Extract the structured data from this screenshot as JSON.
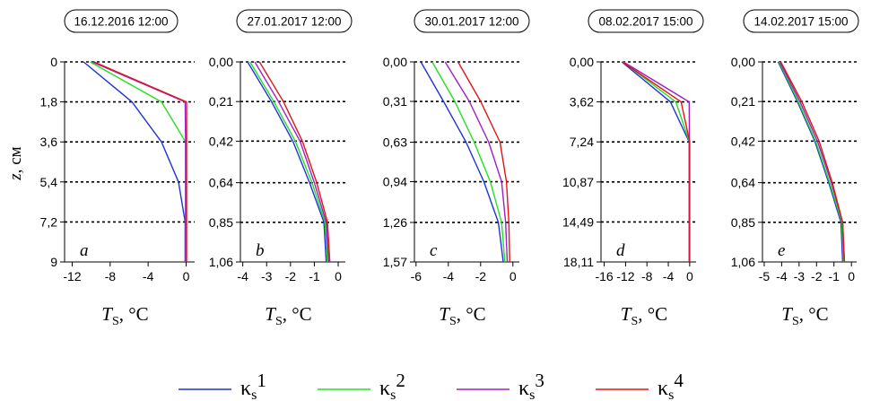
{
  "chart_data": [
    {
      "type": "line",
      "title": "16.12.2016 12:00",
      "panel_letter": "a",
      "ylabel_var": "z",
      "ylabel_unit": ", см",
      "xlabel_var": "T",
      "xlabel_sub": "S",
      "xlabel_unit": ", °C",
      "y_ticks": [
        "0",
        "1,8",
        "3,6",
        "5,4",
        "7,2",
        "9"
      ],
      "y_values": [
        0,
        1.8,
        3.6,
        5.4,
        7.2,
        9
      ],
      "x_ticks": [
        "-12",
        "-8",
        "-4",
        "0"
      ],
      "x_tick_values": [
        -12,
        -8,
        -4,
        0
      ],
      "xlim": [
        -12.8,
        0.9
      ],
      "ylim": [
        0,
        9
      ],
      "dashed_gridlines": [
        0,
        1.8,
        3.6,
        5.4,
        7.2
      ],
      "series": [
        {
          "name": "κs1",
          "y": [
            0,
            1.8,
            3.6,
            5.4,
            7.2,
            9
          ],
          "x": [
            -10.8,
            -5.7,
            -2.6,
            -0.8,
            -0.1,
            -0.1
          ]
        },
        {
          "name": "κs2",
          "y": [
            0,
            1.8,
            3.6,
            5.4,
            7.2,
            9
          ],
          "x": [
            -10.1,
            -2.6,
            -0.05,
            -0.05,
            -0.05,
            -0.05
          ]
        },
        {
          "name": "κs3",
          "y": [
            0,
            1.8,
            3.6,
            5.4,
            7.2,
            9
          ],
          "x": [
            -9.9,
            -0.1,
            -0.05,
            -0.05,
            -0.05,
            -0.05
          ]
        },
        {
          "name": "κs4",
          "y": [
            0,
            1.8,
            3.6,
            5.4,
            7.2,
            9
          ],
          "x": [
            -9.7,
            0.05,
            0.05,
            0.05,
            0.05,
            0.05
          ]
        }
      ]
    },
    {
      "type": "line",
      "title": "27.01.2017 12:00",
      "panel_letter": "b",
      "xlabel_var": "T",
      "xlabel_sub": "S",
      "xlabel_unit": ", °C",
      "y_ticks": [
        "0,00",
        "0,21",
        "0,42",
        "0,64",
        "0,85",
        "1,06"
      ],
      "y_values": [
        0,
        0.21,
        0.42,
        0.64,
        0.85,
        1.06
      ],
      "x_ticks": [
        "-4",
        "-3",
        "-2",
        "-1",
        "0"
      ],
      "x_tick_values": [
        -4,
        -3,
        -2,
        -1,
        0
      ],
      "xlim": [
        -4.1,
        0.3
      ],
      "ylim": [
        0,
        1.06
      ],
      "dashed_gridlines": [
        0,
        0.21,
        0.42,
        0.64,
        0.85
      ],
      "series": [
        {
          "name": "κs1",
          "y": [
            0,
            0.21,
            0.42,
            0.64,
            0.85,
            1.06
          ],
          "x": [
            -3.8,
            -2.8,
            -1.9,
            -1.2,
            -0.6,
            -0.5
          ]
        },
        {
          "name": "κs2",
          "y": [
            0,
            0.21,
            0.42,
            0.64,
            0.85,
            1.06
          ],
          "x": [
            -3.7,
            -2.7,
            -1.8,
            -1.1,
            -0.55,
            -0.45
          ]
        },
        {
          "name": "κs3",
          "y": [
            0,
            0.21,
            0.42,
            0.64,
            0.85,
            1.06
          ],
          "x": [
            -3.5,
            -2.5,
            -1.6,
            -1.0,
            -0.5,
            -0.4
          ]
        },
        {
          "name": "κs4",
          "y": [
            0,
            0.21,
            0.42,
            0.64,
            0.85,
            1.06
          ],
          "x": [
            -3.3,
            -2.3,
            -1.5,
            -0.9,
            -0.45,
            -0.35
          ]
        }
      ]
    },
    {
      "type": "line",
      "title": "30.01.2017 12:00",
      "panel_letter": "c",
      "xlabel_var": "T",
      "xlabel_sub": "S",
      "xlabel_unit": ", °C",
      "y_ticks": [
        "0,00",
        "0,31",
        "0,63",
        "0,94",
        "1,26",
        "1,57"
      ],
      "y_values": [
        0,
        0.31,
        0.63,
        0.94,
        1.26,
        1.57
      ],
      "x_ticks": [
        "-6",
        "-4",
        "-2",
        "0"
      ],
      "x_tick_values": [
        -6,
        -4,
        -2,
        0
      ],
      "xlim": [
        -6.1,
        0.4
      ],
      "ylim": [
        0,
        1.57
      ],
      "dashed_gridlines": [
        0,
        0.31,
        0.63,
        0.94,
        1.26
      ],
      "series": [
        {
          "name": "κs1",
          "y": [
            0,
            0.31,
            0.63,
            0.94,
            1.26,
            1.57
          ],
          "x": [
            -5.7,
            -4.3,
            -2.9,
            -1.8,
            -0.9,
            -0.6
          ]
        },
        {
          "name": "κs2",
          "y": [
            0,
            0.31,
            0.63,
            0.94,
            1.26,
            1.57
          ],
          "x": [
            -5.0,
            -3.6,
            -2.4,
            -1.4,
            -0.7,
            -0.5
          ]
        },
        {
          "name": "κs3",
          "y": [
            0,
            0.31,
            0.63,
            0.94,
            1.26,
            1.57
          ],
          "x": [
            -4.2,
            -2.7,
            -1.5,
            -0.7,
            -0.45,
            -0.35
          ]
        },
        {
          "name": "κs4",
          "y": [
            0,
            0.31,
            0.63,
            0.94,
            1.26,
            1.57
          ],
          "x": [
            -3.4,
            -2.0,
            -0.8,
            -0.4,
            -0.25,
            -0.2
          ]
        }
      ]
    },
    {
      "type": "line",
      "title": "08.02.2017 15:00",
      "panel_letter": "d",
      "xlabel_var": "T",
      "xlabel_sub": "S",
      "xlabel_unit": ", °C",
      "y_ticks": [
        "0,00",
        "3,62",
        "7,24",
        "10,87",
        "14,49",
        "18,11"
      ],
      "y_values": [
        0,
        3.62,
        7.24,
        10.87,
        14.49,
        18.11
      ],
      "x_ticks": [
        "-16",
        "-12",
        "-8",
        "-4",
        "0"
      ],
      "x_tick_values": [
        -16,
        -12,
        -8,
        -4,
        0
      ],
      "xlim": [
        -16.6,
        1.2
      ],
      "ylim": [
        0,
        18.11
      ],
      "dashed_gridlines": [
        0,
        3.62,
        7.24,
        10.87,
        14.49
      ],
      "series": [
        {
          "name": "κs1",
          "y": [
            0,
            3.62,
            7.24,
            10.87,
            14.49,
            18.11
          ],
          "x": [
            -12.7,
            -3.6,
            -0.1,
            -0.1,
            -0.1,
            -0.1
          ]
        },
        {
          "name": "κs2",
          "y": [
            0,
            3.62,
            7.24,
            10.87,
            14.49,
            18.11
          ],
          "x": [
            -12.5,
            -2.6,
            -0.05,
            -0.05,
            -0.05,
            -0.05
          ]
        },
        {
          "name": "κs3",
          "y": [
            0,
            3.62,
            7.24,
            10.87,
            14.49,
            18.11
          ],
          "x": [
            -12.4,
            -0.1,
            -0.05,
            -0.05,
            -0.05,
            -0.05
          ]
        },
        {
          "name": "κs4",
          "y": [
            0,
            3.62,
            7.24,
            10.87,
            14.49,
            18.11
          ],
          "x": [
            -12.6,
            -1.6,
            0.0,
            0.0,
            0.0,
            0.0
          ]
        }
      ]
    },
    {
      "type": "line",
      "title": "14.02.2017 15:00",
      "panel_letter": "e",
      "xlabel_var": "T",
      "xlabel_sub": "S",
      "xlabel_unit": ", °C",
      "y_ticks": [
        "0,00",
        "0,21",
        "0,42",
        "0,64",
        "0,85",
        "1,06"
      ],
      "y_values": [
        0,
        0.21,
        0.42,
        0.64,
        0.85,
        1.06
      ],
      "x_ticks": [
        "-5",
        "-4",
        "-3",
        "-2",
        "-1",
        "0"
      ],
      "x_tick_values": [
        -5,
        -4,
        -3,
        -2,
        -1,
        0
      ],
      "xlim": [
        -5.1,
        0.3
      ],
      "ylim": [
        0,
        1.06
      ],
      "dashed_gridlines": [
        0,
        0.21,
        0.42,
        0.64,
        0.85
      ],
      "series": [
        {
          "name": "κs1",
          "y": [
            0,
            0.21,
            0.42,
            0.64,
            0.85,
            1.06
          ],
          "x": [
            -4.2,
            -3.1,
            -2.1,
            -1.3,
            -0.6,
            -0.5
          ]
        },
        {
          "name": "κs2",
          "y": [
            0,
            0.21,
            0.42,
            0.64,
            0.85,
            1.06
          ],
          "x": [
            -4.15,
            -3.05,
            -2.05,
            -1.25,
            -0.55,
            -0.45
          ]
        },
        {
          "name": "κs3",
          "y": [
            0,
            0.21,
            0.42,
            0.64,
            0.85,
            1.06
          ],
          "x": [
            -4.1,
            -2.95,
            -1.95,
            -1.15,
            -0.5,
            -0.4
          ]
        },
        {
          "name": "κs4",
          "y": [
            0,
            0.21,
            0.42,
            0.64,
            0.85,
            1.06
          ],
          "x": [
            -4.05,
            -2.85,
            -1.85,
            -1.1,
            -0.5,
            -0.4
          ]
        }
      ]
    }
  ],
  "legend": {
    "placement": "bottom",
    "items": [
      {
        "base": "κ",
        "sub": "s",
        "sup": "1",
        "color": "#1f33d9"
      },
      {
        "base": "κ",
        "sub": "s",
        "sup": "2",
        "color": "#22e022"
      },
      {
        "base": "κ",
        "sub": "s",
        "sup": "3",
        "color": "#a020c8"
      },
      {
        "base": "κ",
        "sub": "s",
        "sup": "4",
        "color": "#e41414"
      }
    ]
  },
  "colors": {
    "series": [
      "#1f33d9",
      "#22e022",
      "#a020c8",
      "#e41414"
    ],
    "axis": "#000000",
    "grid": "#000000"
  }
}
